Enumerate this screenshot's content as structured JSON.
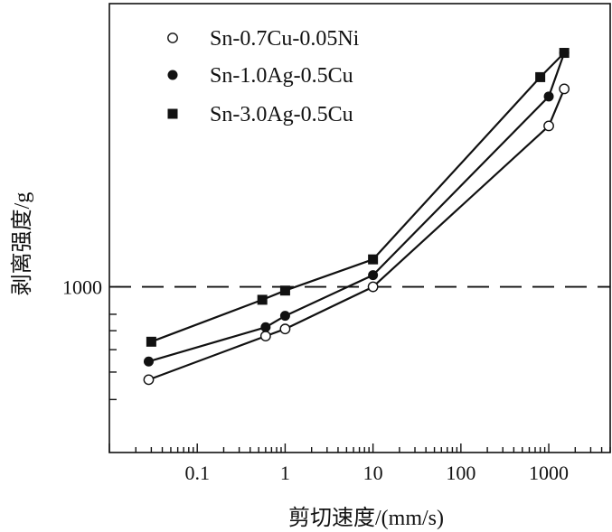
{
  "chart_data": {
    "type": "line",
    "title": "",
    "xlabel": "剪切速度/(mm/s)",
    "ylabel": "剥离强度/g",
    "x_scale": "log",
    "y_scale": "log",
    "xlim": [
      0.01,
      5000
    ],
    "ylim": [
      260,
      10000
    ],
    "x_tick_labels": [
      "0.1",
      "1",
      "10",
      "100",
      "1000"
    ],
    "x_ticks": [
      0.1,
      1,
      10,
      100,
      1000
    ],
    "y_tick_labels": [
      "1000"
    ],
    "y_ticks": [
      1000
    ],
    "y_minor_ticks": [
      400,
      500,
      600,
      700,
      800
    ],
    "reference_line": {
      "y": 1000,
      "style": "dashed"
    },
    "grid": false,
    "legend_position": "top-left",
    "series": [
      {
        "name": "Sn-0.7Cu-0.05Ni",
        "marker": "open-circle",
        "x": [
          0.028,
          0.6,
          1.0,
          10,
          1000,
          1500
        ],
        "y": [
          470,
          670,
          710,
          1000,
          3700,
          5000
        ]
      },
      {
        "name": "Sn-1.0Ag-0.5Cu",
        "marker": "filled-circle",
        "x": [
          0.028,
          0.6,
          1.0,
          10,
          1000,
          1500
        ],
        "y": [
          545,
          720,
          790,
          1100,
          4700,
          6700
        ]
      },
      {
        "name": "Sn-3.0Ag-0.5Cu",
        "marker": "filled-square",
        "x": [
          0.03,
          0.55,
          1.0,
          10,
          800,
          1500
        ],
        "y": [
          640,
          900,
          970,
          1250,
          5500,
          6700
        ]
      }
    ]
  }
}
